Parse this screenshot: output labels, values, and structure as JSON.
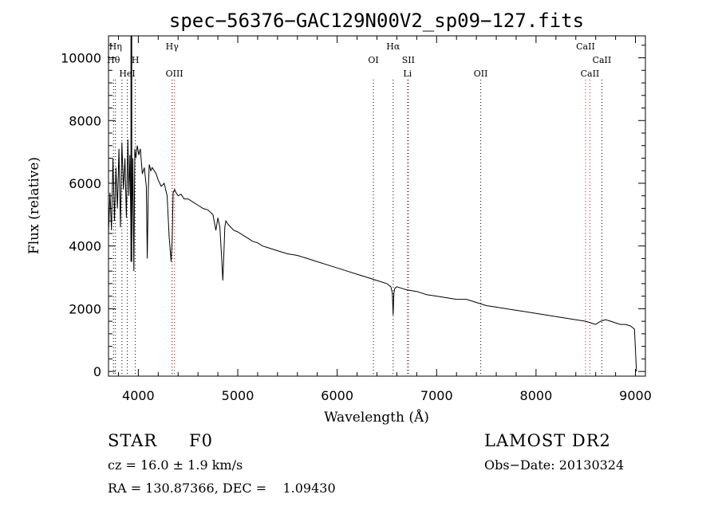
{
  "chart_data": {
    "type": "line",
    "title": "spec−56376−GAC129N00V2_sp09−127.fits",
    "xlabel": "Wavelength (Å)",
    "ylabel": "Flux (relative)",
    "xlim": [
      3700,
      9100
    ],
    "ylim": [
      -150,
      10700
    ],
    "xticks": [
      4000,
      5000,
      6000,
      7000,
      8000,
      9000
    ],
    "yticks": [
      0,
      2000,
      4000,
      6000,
      8000,
      10000
    ],
    "grid": false,
    "series": [
      {
        "x": [
          3700,
          3715,
          3730,
          3745,
          3760,
          3775,
          3790,
          3805,
          3820,
          3835,
          3850,
          3865,
          3880,
          3895,
          3905,
          3915,
          3930,
          3945,
          3955,
          3965,
          3975,
          3990,
          4005,
          4020,
          4040,
          4060,
          4080,
          4090,
          4100,
          4110,
          4125,
          4140,
          4160,
          4180,
          4200,
          4230,
          4260,
          4290,
          4310,
          4330,
          4340,
          4350,
          4365,
          4380,
          4400,
          4430,
          4460,
          4500,
          4550,
          4600,
          4650,
          4700,
          4750,
          4780,
          4800,
          4820,
          4840,
          4850,
          4861,
          4870,
          4880,
          4900,
          4930,
          4960,
          5000,
          5050,
          5100,
          5150,
          5200,
          5250,
          5300,
          5400,
          5500,
          5600,
          5700,
          5800,
          5900,
          6000,
          6100,
          6200,
          6300,
          6400,
          6500,
          6540,
          6555,
          6563,
          6570,
          6580,
          6600,
          6650,
          6700,
          6800,
          6900,
          7000,
          7100,
          7200,
          7300,
          7400,
          7500,
          7600,
          7700,
          7800,
          7900,
          8000,
          8100,
          8200,
          8300,
          8400,
          8500,
          8550,
          8600,
          8650,
          8700,
          8750,
          8800,
          8850,
          8900,
          8950,
          8990,
          9000,
          9010
        ],
        "y": [
          4400,
          5700,
          4500,
          6800,
          4800,
          6500,
          5200,
          7100,
          4600,
          7300,
          5800,
          6800,
          4900,
          7400,
          5600,
          6900,
          3500,
          6800,
          3200,
          7100,
          6800,
          7200,
          6900,
          7100,
          6300,
          6500,
          5900,
          3600,
          5800,
          6600,
          6400,
          6500,
          6400,
          6300,
          6100,
          5900,
          6000,
          5600,
          4300,
          3500,
          4200,
          5700,
          5800,
          5700,
          5600,
          5650,
          5500,
          5500,
          5400,
          5300,
          5200,
          5150,
          5000,
          4500,
          4900,
          4600,
          3500,
          2900,
          3800,
          4600,
          4800,
          4700,
          4600,
          4500,
          4450,
          4350,
          4250,
          4150,
          4100,
          4000,
          3950,
          3850,
          3750,
          3700,
          3600,
          3500,
          3400,
          3300,
          3200,
          3100,
          3000,
          2900,
          2800,
          2700,
          2500,
          1800,
          2500,
          2650,
          2700,
          2650,
          2600,
          2550,
          2450,
          2400,
          2350,
          2300,
          2300,
          2200,
          2100,
          2050,
          2000,
          1950,
          1900,
          1850,
          1800,
          1750,
          1700,
          1650,
          1600,
          1550,
          1500,
          1600,
          1650,
          1600,
          1550,
          1500,
          1500,
          1450,
          1350,
          700,
          0
        ]
      }
    ],
    "spike": {
      "x": 3930,
      "y_low": 3500,
      "y_high": 10700
    },
    "lines": [
      {
        "x": 3750,
        "label": "Hθ",
        "color": "#000000",
        "row": 1
      },
      {
        "x": 3770,
        "label": "Hη",
        "color": "#000000",
        "row": 0
      },
      {
        "x": 3835,
        "label": "",
        "color": "#000000",
        "row": 0
      },
      {
        "x": 3889,
        "label": "HeI",
        "color": "#000000",
        "row": 2
      },
      {
        "x": 3970,
        "label": "H",
        "color": "#000000",
        "row": 1
      },
      {
        "x": 4340,
        "label": "Hγ",
        "color": "#000000",
        "row": 0
      },
      {
        "x": 4363,
        "label": "OIII",
        "color": "#ff0000",
        "row": 2
      },
      {
        "x": 6364,
        "label": "OI",
        "color": "#000000",
        "row": 1
      },
      {
        "x": 6563,
        "label": "Hα",
        "color": "#000000",
        "row": 0
      },
      {
        "x": 6707,
        "label": "Li",
        "color": "#ff0000",
        "row": 2
      },
      {
        "x": 6716,
        "label": "SII",
        "color": "#000000",
        "row": 1
      },
      {
        "x": 7444,
        "label": "OII",
        "color": "#000000",
        "row": 2
      },
      {
        "x": 8498,
        "label": "CaII",
        "color": "#ff0000",
        "row": 0
      },
      {
        "x": 8542,
        "label": "CaII",
        "color": "#ff0000",
        "row": 2
      },
      {
        "x": 8662,
        "label": "CaII",
        "color": "#000000",
        "row": 1
      }
    ]
  },
  "info": {
    "class": "STAR",
    "subclass": "F0",
    "survey": "LAMOST DR2",
    "cz": "cz = 16.0 ± 1.9 km/s",
    "obs_date": "Obs−Date: 20130324",
    "radec": "RA = 130.87366, DEC =    1.09430"
  }
}
